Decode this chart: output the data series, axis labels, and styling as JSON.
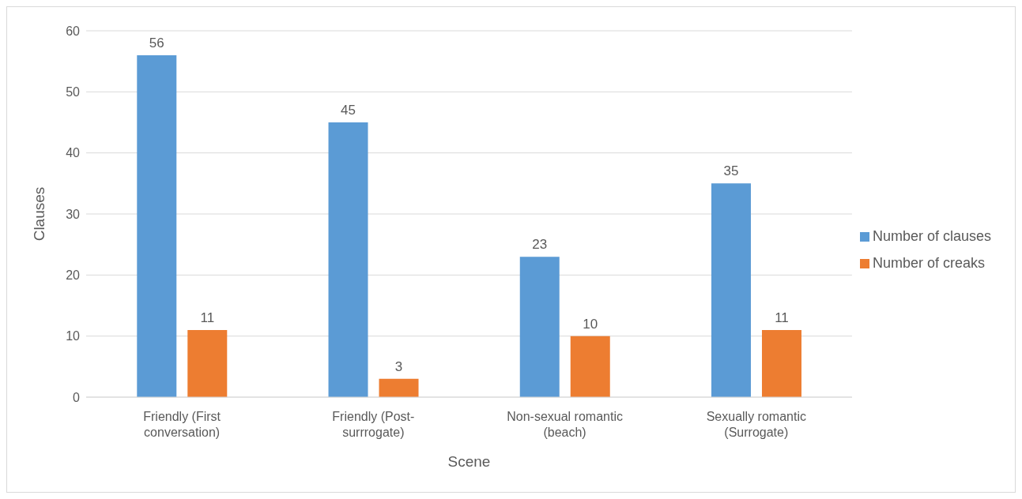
{
  "chart_data": {
    "type": "bar",
    "xlabel": "Scene",
    "ylabel": "Clauses",
    "categories": [
      "Friendly (First conversation)",
      "Friendly (Post-surrrogate)",
      "Non-sexual romantic (beach)",
      "Sexually romantic (Surrogate)"
    ],
    "series": [
      {
        "name": "Number of clauses",
        "color": "#5b9bd5",
        "values": [
          56,
          45,
          23,
          35
        ]
      },
      {
        "name": "Number of creaks",
        "color": "#ed7d31",
        "values": [
          11,
          3,
          10,
          11
        ]
      }
    ],
    "ylim": [
      0,
      60
    ],
    "yticks": [
      0,
      10,
      20,
      30,
      40,
      50,
      60
    ],
    "grid": "y",
    "legend": "right",
    "data_labels": true
  }
}
